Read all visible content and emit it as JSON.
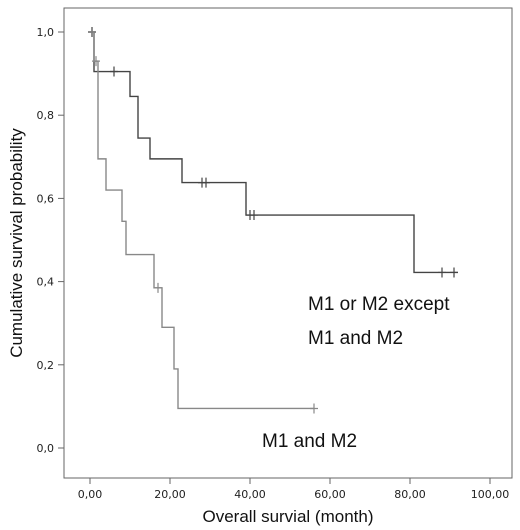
{
  "chart_data": {
    "type": "line",
    "subtype": "kaplan-meier",
    "xlabel": "Overall survial (month)",
    "ylabel": "Cumulative survival probability",
    "xlim": [
      0,
      100
    ],
    "ylim": [
      0,
      1
    ],
    "x_ticks": [
      "0,00",
      "20,00",
      "40,00",
      "60,00",
      "80,00",
      "100,00"
    ],
    "y_ticks": [
      "0,0",
      "0,2",
      "0,4",
      "0,6",
      "0,8",
      "1,0"
    ],
    "grid": false,
    "annotations": [
      "M1 or M2 except",
      "M1 and M2",
      "M1 and M2"
    ],
    "series": [
      {
        "color": "#444444",
        "steps": [
          [
            0,
            1.0
          ],
          [
            1,
            0.905
          ],
          [
            10,
            0.845
          ],
          [
            12,
            0.745
          ],
          [
            15,
            0.695
          ],
          [
            23,
            0.638
          ],
          [
            39,
            0.56
          ],
          [
            81,
            0.422
          ],
          [
            92,
            0.422
          ]
        ],
        "censored": [
          [
            0.5,
            1.0
          ],
          [
            6,
            0.905
          ],
          [
            28,
            0.638
          ],
          [
            29,
            0.638
          ],
          [
            40,
            0.56
          ],
          [
            41,
            0.56
          ],
          [
            88,
            0.422
          ],
          [
            91,
            0.422
          ]
        ]
      },
      {
        "color": "#888888",
        "steps": [
          [
            0,
            1.0
          ],
          [
            1,
            0.93
          ],
          [
            2,
            0.695
          ],
          [
            4,
            0.62
          ],
          [
            8,
            0.545
          ],
          [
            9,
            0.465
          ],
          [
            16,
            0.385
          ],
          [
            18,
            0.29
          ],
          [
            21,
            0.19
          ],
          [
            22,
            0.095
          ],
          [
            56,
            0.095
          ]
        ],
        "censored": [
          [
            1.5,
            0.93
          ],
          [
            17,
            0.385
          ],
          [
            56,
            0.095
          ]
        ]
      }
    ]
  }
}
